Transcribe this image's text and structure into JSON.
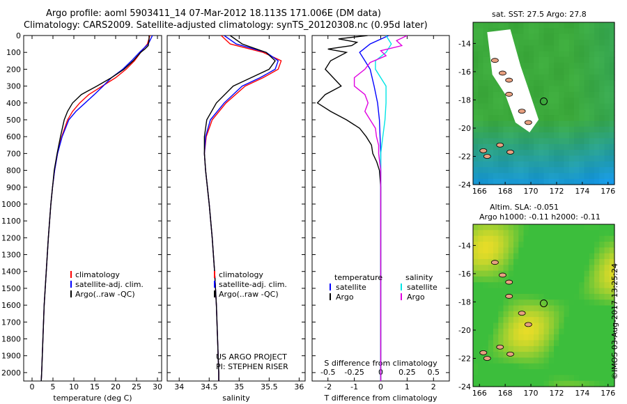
{
  "header": {
    "line1": "Argo profile: aoml 5903411_14 07-Mar-2012 18.113S 171.006E (DM data)",
    "line2": "Climatology: CARS2009. Satellite-adjusted climatology: synTS_20120308.nc (0.95d later)"
  },
  "maps": {
    "sst_title": "sat. SST: 27.5 Argo: 27.8",
    "sla_title_1": "Altim. SLA: -0.051",
    "sla_title_2": "Argo h1000: -0.11 h2000: -0.11"
  },
  "stamp": "©IMOS 03-Aug-2017 13:25:24",
  "credits": {
    "line1": "US ARGO PROJECT",
    "line2": "PI: STEPHEN RISER"
  },
  "colors": {
    "clim": "#ff0000",
    "sat": "#0000ff",
    "argo": "#000000",
    "sal_sat": "#00e5e5",
    "sal_argo": "#e000e0"
  },
  "chart_data": [
    {
      "type": "line",
      "title": "",
      "xlabel": "temperature (deg C)",
      "ylabel": "",
      "xlim": [
        -2,
        31
      ],
      "ylim": [
        2050,
        0
      ],
      "xticks": [
        0,
        5,
        10,
        15,
        20,
        25,
        30
      ],
      "yticks": [
        0,
        100,
        200,
        300,
        400,
        500,
        600,
        700,
        800,
        900,
        1000,
        1100,
        1200,
        1300,
        1400,
        1500,
        1600,
        1700,
        1800,
        1900,
        2000
      ],
      "legend": [
        "climatology",
        "satellite-adj. clim.",
        "Argo(..raw -QC)"
      ],
      "series": [
        {
          "name": "climatology",
          "depth": [
            0,
            50,
            100,
            150,
            200,
            250,
            300,
            350,
            400,
            450,
            500,
            600,
            700,
            800,
            900,
            1000,
            1200,
            1400,
            1600,
            1800,
            2000,
            2050
          ],
          "values": [
            28.2,
            27.6,
            26.0,
            24.5,
            22.5,
            20.0,
            16.8,
            13.6,
            11.4,
            9.7,
            8.5,
            7.1,
            6.1,
            5.4,
            4.9,
            4.5,
            3.9,
            3.4,
            2.9,
            2.6,
            2.3,
            2.2
          ]
        },
        {
          "name": "satellite-adj. clim.",
          "depth": [
            0,
            50,
            100,
            150,
            200,
            250,
            300,
            350,
            400,
            450,
            500,
            600,
            700,
            800,
            900,
            1000,
            1200,
            1400,
            1600,
            1800,
            2000,
            2050
          ],
          "values": [
            28.8,
            27.8,
            25.7,
            23.8,
            21.7,
            19.0,
            17.0,
            14.9,
            12.7,
            10.5,
            8.8,
            7.2,
            6.1,
            5.4,
            4.9,
            4.5,
            3.9,
            3.4,
            2.9,
            2.6,
            2.3,
            2.2
          ]
        },
        {
          "name": "Argo(..raw -QC)",
          "depth": [
            0,
            20,
            40,
            60,
            80,
            100,
            150,
            200,
            250,
            300,
            350,
            400,
            450,
            500,
            600,
            700,
            800,
            900,
            1000,
            1200,
            1400,
            1600,
            1800,
            2000,
            2050
          ],
          "values": [
            28.0,
            28.0,
            27.9,
            27.8,
            27.0,
            26.0,
            24.2,
            22.0,
            19.0,
            15.5,
            11.8,
            9.7,
            8.5,
            7.7,
            6.8,
            6.0,
            5.3,
            4.9,
            4.5,
            3.9,
            3.4,
            2.9,
            2.6,
            2.3,
            2.2
          ]
        }
      ]
    },
    {
      "type": "line",
      "title": "",
      "xlabel": "salinity",
      "ylabel": "",
      "xlim": [
        33.8,
        36.1
      ],
      "ylim": [
        2050,
        0
      ],
      "xticks": [
        34,
        34.5,
        35,
        35.5,
        36
      ],
      "legend": [
        "climatology",
        "satellite-adj. clim.",
        "Argo(..raw -QC)"
      ],
      "series": [
        {
          "name": "climatology",
          "depth": [
            0,
            50,
            100,
            150,
            200,
            250,
            300,
            400,
            500,
            600,
            700,
            800,
            1000,
            1200,
            1400,
            1600,
            1800,
            2000,
            2050
          ],
          "values": [
            34.7,
            34.85,
            35.4,
            35.7,
            35.65,
            35.4,
            35.1,
            34.78,
            34.55,
            34.45,
            34.42,
            34.44,
            34.5,
            34.55,
            34.59,
            34.62,
            34.64,
            34.66,
            34.66
          ]
        },
        {
          "name": "satellite-adj. clim.",
          "depth": [
            0,
            50,
            100,
            150,
            200,
            250,
            300,
            400,
            500,
            600,
            700,
            800,
            1000,
            1200,
            1400,
            1600,
            1800,
            2000,
            2050
          ],
          "values": [
            34.75,
            34.95,
            35.45,
            35.65,
            35.6,
            35.35,
            35.05,
            34.75,
            34.52,
            34.44,
            34.42,
            34.44,
            34.5,
            34.55,
            34.59,
            34.62,
            34.64,
            34.66,
            34.66
          ]
        },
        {
          "name": "Argo(..raw -QC)",
          "depth": [
            0,
            50,
            100,
            150,
            200,
            250,
            300,
            400,
            500,
            600,
            700,
            800,
            1000,
            1200,
            1400,
            1600,
            1800,
            2000,
            2050
          ],
          "values": [
            34.85,
            35.05,
            35.45,
            35.6,
            35.5,
            35.2,
            34.9,
            34.62,
            34.46,
            34.42,
            34.42,
            34.44,
            34.5,
            34.55,
            34.59,
            34.62,
            34.64,
            34.66,
            34.66
          ]
        }
      ]
    },
    {
      "type": "line",
      "title": "",
      "xlabel": "T difference from climatology",
      "xlabel_top": "S difference from climatology",
      "ylabel": "",
      "xlim": [
        -2.6,
        2.6
      ],
      "ylim": [
        2050,
        0
      ],
      "xticks": [
        -2,
        -1,
        0,
        1,
        2
      ],
      "xticks_s": [
        -0.5,
        -0.25,
        0,
        0.25,
        0.5
      ],
      "s_scale": 4,
      "legend_headers": [
        "temperature",
        "salinity"
      ],
      "legend": [
        "satellite",
        "Argo",
        "satellite",
        "Argo"
      ],
      "series": [
        {
          "name": "temperature satellite",
          "depth": [
            0,
            50,
            100,
            150,
            200,
            300,
            400,
            500,
            700,
            900,
            1200,
            2050
          ],
          "values": [
            0.3,
            -0.4,
            -0.8,
            -0.6,
            -0.4,
            -0.25,
            -0.12,
            -0.05,
            0,
            0,
            0,
            0
          ]
        },
        {
          "name": "temperature Argo",
          "depth": [
            0,
            20,
            40,
            60,
            80,
            100,
            150,
            200,
            250,
            300,
            350,
            400,
            450,
            500,
            550,
            600,
            650,
            700,
            750,
            800,
            900,
            1000,
            1200,
            2050
          ],
          "values": [
            -0.5,
            -1.6,
            -0.9,
            -1.1,
            -2.0,
            -1.3,
            -1.9,
            -2.1,
            -1.8,
            -1.5,
            -2.1,
            -2.4,
            -1.9,
            -1.3,
            -0.8,
            -0.55,
            -0.35,
            -0.3,
            -0.15,
            -0.05,
            0,
            0,
            0,
            0
          ]
        },
        {
          "name": "salinity satellite",
          "depth": [
            0,
            50,
            100,
            150,
            200,
            300,
            400,
            500,
            600,
            700,
            800,
            1200,
            2050
          ],
          "values": [
            0.05,
            0.1,
            0.05,
            -0.05,
            -0.05,
            0.05,
            0.05,
            0.04,
            0.02,
            0.0,
            0.0,
            0.0,
            0.0
          ]
        },
        {
          "name": "salinity Argo",
          "depth": [
            0,
            30,
            60,
            90,
            120,
            160,
            200,
            250,
            300,
            350,
            400,
            450,
            500,
            550,
            600,
            650,
            700,
            750,
            800,
            1200,
            2050
          ],
          "values": [
            0.25,
            0.15,
            0.2,
            0.0,
            0.05,
            -0.1,
            -0.15,
            -0.25,
            -0.25,
            -0.15,
            -0.12,
            -0.15,
            -0.1,
            -0.05,
            -0.04,
            -0.02,
            -0.02,
            -0.01,
            0.0,
            0.0,
            0.0
          ]
        }
      ]
    },
    {
      "type": "heatmap",
      "title": "sat. SST: 27.5 Argo: 27.8",
      "xlim": [
        165.5,
        176.5
      ],
      "ylim": [
        -24,
        -12.5
      ],
      "xticks": [
        166,
        168,
        170,
        172,
        174,
        176
      ],
      "yticks": [
        -14,
        -16,
        -18,
        -20,
        -22,
        -24
      ],
      "argo_position": [
        171.0,
        -18.1
      ]
    },
    {
      "type": "heatmap",
      "title": "Altim. SLA: -0.051",
      "xlim": [
        165.5,
        176.5
      ],
      "ylim": [
        -24,
        -12.5
      ],
      "xticks": [
        166,
        168,
        170,
        172,
        174,
        176
      ],
      "yticks": [
        -14,
        -16,
        -18,
        -20,
        -22,
        -24
      ],
      "argo_position": [
        171.0,
        -18.1
      ]
    }
  ]
}
